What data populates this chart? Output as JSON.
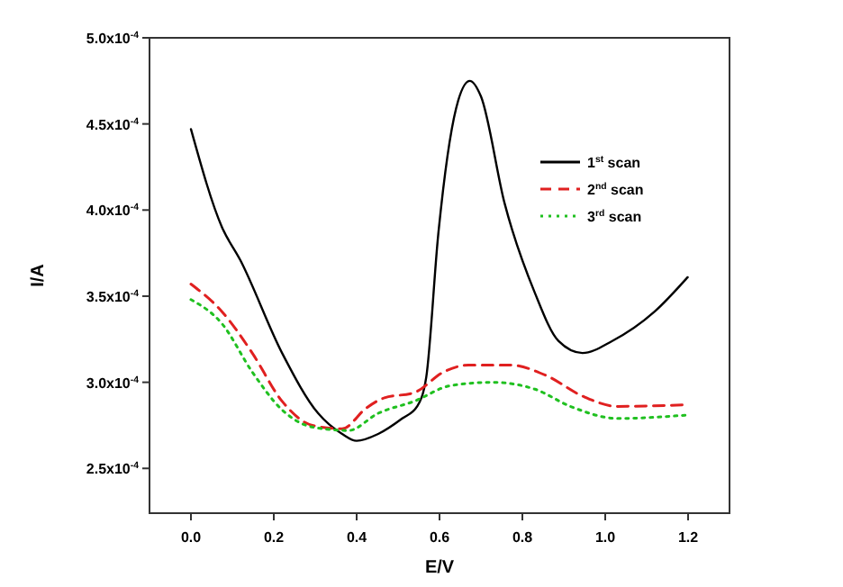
{
  "chart_data": {
    "type": "line",
    "xlabel": "E/V",
    "ylabel": "I/A",
    "xlim": [
      -0.1,
      1.3
    ],
    "xticks": [
      {
        "value": 0,
        "label": "0.0"
      },
      0.2,
      0.4,
      0.6,
      0.8,
      {
        "value": 1,
        "label": "1.0"
      },
      1.2
    ],
    "ylim": [
      0.000224,
      0.0005
    ],
    "yticks": [
      {
        "value": 0.00025,
        "label": "2.5x10$^{-4}$"
      },
      {
        "value": 0.0003,
        "label": "3.0x10$^{-4}$"
      },
      {
        "value": 0.00035,
        "label": "3.5x10$^{-4}$"
      },
      {
        "value": 0.0004,
        "label": "4.0x10$^{-4}$"
      },
      {
        "value": 0.00045,
        "label": "4.5x10$^{-4}$"
      },
      {
        "value": 0.0005,
        "label": "5.0x10$^{-4}$"
      }
    ],
    "legend": "right",
    "grid": false,
    "series": [
      {
        "name": "1$^{st}$ scan",
        "color": "#000000",
        "line_style": "solid",
        "x": [
          0,
          0.075,
          0.119,
          0.22,
          0.307,
          0.365,
          0.4,
          0.452,
          0.51,
          0.546,
          0.568,
          0.597,
          0.64,
          0.673,
          0.7,
          0.757,
          0.83,
          0.887,
          0.945,
          1.017,
          1.119,
          1.199
        ],
        "values": [
          0.000447,
          0.00039,
          0.000371,
          0.000317,
          0.000282,
          0.00027,
          0.000266,
          0.00027,
          0.000279,
          0.000286,
          0.000303,
          0.000386,
          0.000459,
          0.000475,
          0.000466,
          0.000404,
          0.000352,
          0.000324,
          0.000317,
          0.000324,
          0.000341,
          0.000361
        ]
      },
      {
        "name": "2$^{nd}$ scan",
        "color": "#e02020",
        "line_style": "dashed",
        "x": [
          0,
          0.075,
          0.148,
          0.22,
          0.293,
          0.365,
          0.423,
          0.467,
          0.539,
          0.61,
          0.67,
          0.77,
          0.857,
          0.945,
          1.03,
          1.199
        ],
        "values": [
          0.000357,
          0.000341,
          0.000317,
          0.000289,
          0.000275,
          0.000273,
          0.000285,
          0.000291,
          0.000294,
          0.000306,
          0.00031,
          0.00031,
          0.000304,
          0.000292,
          0.000286,
          0.000287
        ]
      },
      {
        "name": "3$^{rd}$ scan",
        "color": "#20c020",
        "line_style": "dotted",
        "x": [
          0,
          0.075,
          0.148,
          0.22,
          0.293,
          0.38,
          0.452,
          0.539,
          0.626,
          0.727,
          0.83,
          0.916,
          1.03,
          1.199
        ],
        "values": [
          0.000348,
          0.000334,
          0.000306,
          0.000284,
          0.000274,
          0.000272,
          0.000282,
          0.000289,
          0.000298,
          0.0003,
          0.000296,
          0.000286,
          0.000279,
          0.000281
        ]
      }
    ]
  }
}
